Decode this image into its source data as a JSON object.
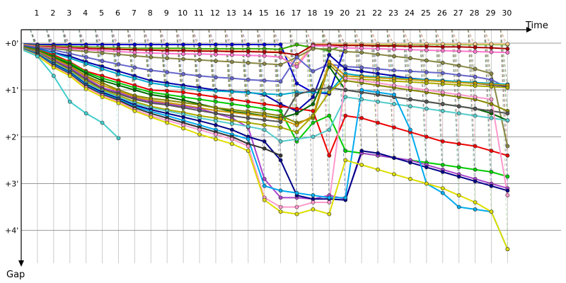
{
  "chart_data": {
    "type": "line",
    "xlabel": "Time",
    "ylabel": "Gap",
    "x_ticks": [
      "1",
      "2",
      "3",
      "4",
      "5",
      "6",
      "7",
      "8",
      "9",
      "10",
      "11",
      "12",
      "13",
      "14",
      "15",
      "16",
      "17",
      "18",
      "19",
      "20",
      "21",
      "22",
      "23",
      "24",
      "25",
      "26",
      "27",
      "28",
      "29",
      "30"
    ],
    "y_ticks": [
      "+0'",
      "+1'",
      "+2'",
      "+3'",
      "+4'"
    ],
    "xlim": [
      0,
      33.3
    ],
    "ylim": [
      0,
      4.7
    ],
    "grid": true,
    "series": [
      {
        "color": "#0000cc",
        "values": [
          0.03,
          0.03,
          0.03,
          0.03,
          0.03,
          0.03,
          0.03,
          0.03,
          0.03,
          0.03,
          0.03,
          0.03,
          0.03,
          0.03,
          0.03,
          0.03,
          0.86,
          1.05,
          1.08,
          0.05
        ]
      },
      {
        "color": "#33aa00",
        "values": [
          0.05,
          0.06,
          0.07,
          0.08,
          0.09,
          0.1,
          0.11,
          0.11,
          0.11,
          0.11,
          0.12,
          0.12,
          0.12,
          0.12,
          0.12,
          0.13,
          0.03,
          0.1,
          0.16,
          0.03,
          0.03,
          0.03,
          0.03,
          0.03,
          0.03,
          0.03,
          0.03,
          0.03,
          0.03,
          0.03
        ]
      },
      {
        "color": "#ffcc88",
        "values": [
          0.06,
          0.07,
          0.09,
          0.1,
          0.11,
          0.12,
          0.13,
          0.14,
          0.14,
          0.15,
          0.15,
          0.16,
          0.16,
          0.17,
          0.17,
          0.18,
          0.45,
          0.02,
          0.02,
          0.02,
          0.02,
          0.02,
          0.02,
          0.02,
          0.02,
          0.02,
          0.02,
          0.02,
          0.02,
          0.02
        ]
      },
      {
        "color": "#aa0000",
        "values": [
          0.07,
          0.08,
          0.1,
          0.11,
          0.12,
          0.13,
          0.14,
          0.15,
          0.16,
          0.16,
          0.17,
          0.17,
          0.18,
          0.18,
          0.19,
          0.2,
          0.25,
          0.04,
          0.04,
          0.05,
          0.05,
          0.06,
          0.06,
          0.07,
          0.07,
          0.08,
          0.08,
          0.09,
          0.1,
          0.12
        ]
      },
      {
        "color": "#ff77cc",
        "values": [
          0.08,
          0.1,
          0.12,
          0.14,
          0.16,
          0.18,
          0.2,
          0.21,
          0.22,
          0.23,
          0.23,
          0.24,
          0.25,
          0.26,
          0.27,
          0.3,
          0.5,
          0.06,
          0.06,
          0.1,
          0.11,
          0.12,
          0.13,
          0.14,
          0.15,
          0.16,
          0.17,
          0.18,
          0.19,
          0.2
        ]
      },
      {
        "color": "#888844",
        "values": [
          0.09,
          0.12,
          0.15,
          0.18,
          0.21,
          0.24,
          0.27,
          0.3,
          0.32,
          0.34,
          0.36,
          0.38,
          0.4,
          0.42,
          0.44,
          0.46,
          0.3,
          0.12,
          0.12,
          0.18,
          0.2,
          0.24,
          0.28,
          0.32,
          0.37,
          0.42,
          0.48,
          0.55,
          0.65,
          2.2
        ]
      },
      {
        "color": "#6666cc",
        "values": [
          0.1,
          0.15,
          0.22,
          0.3,
          0.38,
          0.45,
          0.52,
          0.58,
          0.62,
          0.66,
          0.7,
          0.73,
          0.75,
          0.78,
          0.8,
          0.82,
          0.3,
          0.6,
          0.45,
          0.5,
          0.52,
          0.55,
          0.58,
          0.6,
          0.62,
          0.64,
          0.68,
          0.72,
          0.78,
          0.95
        ]
      },
      {
        "color": "#0000aa",
        "values": [
          0.12,
          0.2,
          0.28,
          0.4,
          0.5,
          0.6,
          0.7,
          0.8,
          0.85,
          0.9,
          0.95,
          1.0,
          1.03,
          1.05,
          1.1,
          1.3,
          1.45,
          1.15,
          0.25,
          0.55,
          0.6,
          0.65,
          0.7,
          0.75,
          0.78,
          0.8,
          0.83,
          0.86,
          0.89,
          0.92
        ]
      },
      {
        "color": "#00aacc",
        "values": [
          0.13,
          0.21,
          0.32,
          0.44,
          0.55,
          0.66,
          0.75,
          0.85,
          0.9,
          0.95,
          1.0,
          1.02,
          1.04,
          1.06,
          1.08,
          1.1,
          1.05,
          1.05,
          1.05,
          0.65,
          0.7,
          0.72,
          0.74,
          0.76,
          0.78,
          0.8,
          0.82,
          0.84,
          0.86,
          0.88
        ]
      },
      {
        "color": "#ee0000",
        "values": [
          0.14,
          0.25,
          0.4,
          0.6,
          0.7,
          0.8,
          0.9,
          1.0,
          1.02,
          1.05,
          1.1,
          1.15,
          1.2,
          1.25,
          1.3,
          1.35,
          1.4,
          1.45,
          2.4,
          1.55,
          1.6,
          1.7,
          1.8,
          1.9,
          2.0,
          2.1,
          2.15,
          2.2,
          2.3,
          2.4
        ]
      },
      {
        "color": "#00cc00",
        "values": [
          0.15,
          0.28,
          0.42,
          0.62,
          0.75,
          0.85,
          0.95,
          1.05,
          1.1,
          1.15,
          1.2,
          1.25,
          1.3,
          1.35,
          1.4,
          1.45,
          2.1,
          1.7,
          1.55,
          2.3,
          2.35,
          2.4,
          2.45,
          2.5,
          2.55,
          2.6,
          2.65,
          2.7,
          2.75,
          2.85
        ]
      },
      {
        "color": "#006600",
        "values": [
          0.16,
          0.3,
          0.45,
          0.65,
          0.8,
          0.9,
          1.0,
          1.1,
          1.15,
          1.22,
          1.3,
          1.38,
          1.46,
          1.5,
          1.55,
          1.6,
          1.5,
          1.3,
          0.5,
          1.0,
          1.05,
          1.1,
          1.15,
          1.2,
          1.25,
          1.3,
          1.35,
          1.4,
          1.5,
          1.65
        ]
      },
      {
        "color": "#888800",
        "values": [
          0.17,
          0.32,
          0.48,
          0.7,
          0.85,
          1.0,
          1.12,
          1.18,
          1.22,
          1.27,
          1.32,
          1.38,
          1.42,
          1.46,
          1.5,
          1.55,
          1.7,
          1.6,
          0.45,
          0.8,
          0.85,
          0.9,
          0.95,
          1.0,
          1.05,
          1.1,
          1.15,
          1.2,
          1.3,
          1.45
        ]
      },
      {
        "color": "#cc9900",
        "values": [
          0.18,
          0.34,
          0.5,
          0.72,
          0.9,
          1.02,
          1.15,
          1.22,
          1.27,
          1.32,
          1.38,
          1.44,
          1.48,
          1.52,
          1.56,
          1.62,
          1.75,
          1.55,
          0.4,
          0.7,
          0.72,
          0.74,
          0.76,
          0.78,
          0.8,
          0.82,
          0.84,
          0.86,
          0.88,
          0.9
        ]
      },
      {
        "color": "#aa44cc",
        "values": [
          0.19,
          0.36,
          0.52,
          0.75,
          0.95,
          1.05,
          1.18,
          1.25,
          1.3,
          1.35,
          1.4,
          1.5,
          1.6,
          1.8,
          2.9,
          3.3,
          3.3,
          3.33,
          3.25,
          3.33,
          2.35,
          2.4,
          2.45,
          2.5,
          2.6,
          2.7,
          2.8,
          2.9,
          3.0,
          3.1
        ]
      },
      {
        "color": "#555555",
        "values": [
          0.2,
          0.38,
          0.55,
          0.78,
          0.98,
          1.08,
          1.2,
          1.28,
          1.32,
          1.38,
          1.44,
          1.5,
          1.55,
          1.6,
          1.64,
          1.68,
          1.1,
          1.0,
          0.95,
          1.0,
          1.05,
          1.1,
          1.15,
          1.2,
          1.25,
          1.3,
          1.35,
          1.4,
          1.45,
          1.5
        ]
      },
      {
        "color": "#aaaa00",
        "values": [
          0.21,
          0.4,
          0.58,
          0.82,
          1.0,
          1.12,
          1.25,
          1.35,
          1.42,
          1.48,
          1.55,
          1.6,
          1.65,
          1.7,
          1.75,
          1.8,
          1.9,
          1.55,
          1.05,
          0.75,
          0.77,
          0.79,
          0.81,
          0.83,
          0.85,
          0.87,
          0.89,
          0.91,
          0.93,
          0.95
        ]
      },
      {
        "color": "#55cccc",
        "values": [
          0.22,
          0.42,
          0.6,
          0.85,
          1.02,
          1.15,
          1.28,
          1.38,
          1.45,
          1.52,
          1.6,
          1.66,
          1.72,
          1.78,
          1.85,
          2.1,
          2.05,
          2.0,
          1.85,
          1.15,
          1.2,
          1.25,
          1.3,
          1.35,
          1.4,
          1.45,
          1.5,
          1.55,
          1.6,
          1.65
        ]
      },
      {
        "color": "#000088",
        "values": [
          0.23,
          0.44,
          0.62,
          0.88,
          1.05,
          1.18,
          1.32,
          1.42,
          1.5,
          1.58,
          1.66,
          1.75,
          1.85,
          2.0,
          2.1,
          2.5,
          3.25,
          3.33,
          3.33,
          3.35,
          2.3,
          2.35,
          2.45,
          2.55,
          2.65,
          2.75,
          2.85,
          2.95,
          3.05,
          3.15
        ]
      },
      {
        "color": "#00aaee",
        "values": [
          0.24,
          0.46,
          0.64,
          0.9,
          1.08,
          1.2,
          1.35,
          1.46,
          1.55,
          1.65,
          1.75,
          1.85,
          1.95,
          2.05,
          3.05,
          3.15,
          3.2,
          3.25,
          3.3,
          3.3,
          1.0,
          1.05,
          1.1,
          1.85,
          3.0,
          3.2,
          3.5,
          3.55,
          3.6,
          4.4
        ]
      },
      {
        "color": "#333333",
        "values": [
          0.25,
          0.48,
          0.66,
          0.92,
          1.1,
          1.22,
          1.38,
          1.5,
          1.6,
          1.7,
          1.8,
          1.9,
          2.0,
          2.15,
          2.25,
          2.4,
          null,
          null,
          null,
          null,
          null,
          null,
          null,
          null,
          null,
          null,
          null,
          null,
          null,
          null
        ]
      },
      {
        "color": "#ff99cc",
        "values": [
          0.26,
          0.5,
          0.68,
          0.95,
          1.12,
          1.25,
          1.42,
          1.55,
          1.65,
          1.75,
          1.85,
          1.95,
          2.05,
          2.2,
          3.3,
          3.5,
          3.5,
          3.4,
          3.4,
          0.75,
          0.8,
          0.85,
          0.9,
          0.95,
          1.0,
          1.05,
          1.1,
          1.15,
          1.2,
          3.25
        ]
      },
      {
        "color": "#dddd00",
        "values": [
          0.27,
          0.52,
          0.7,
          0.98,
          1.15,
          1.28,
          1.45,
          1.58,
          1.7,
          1.82,
          1.95,
          2.05,
          2.15,
          2.3,
          3.35,
          3.6,
          3.65,
          3.55,
          3.65,
          2.5,
          2.6,
          2.7,
          2.8,
          2.9,
          3.0,
          3.1,
          3.25,
          3.4,
          3.6,
          4.4
        ]
      },
      {
        "color": "#44cccc",
        "values": [
          0.28,
          0.7,
          1.25,
          1.5,
          1.7,
          2.03,
          null,
          null,
          null,
          null,
          null,
          null,
          null,
          null,
          null,
          null,
          null,
          null,
          null,
          null,
          null,
          null,
          null,
          null,
          null,
          null,
          null,
          null,
          null,
          null
        ]
      }
    ]
  }
}
